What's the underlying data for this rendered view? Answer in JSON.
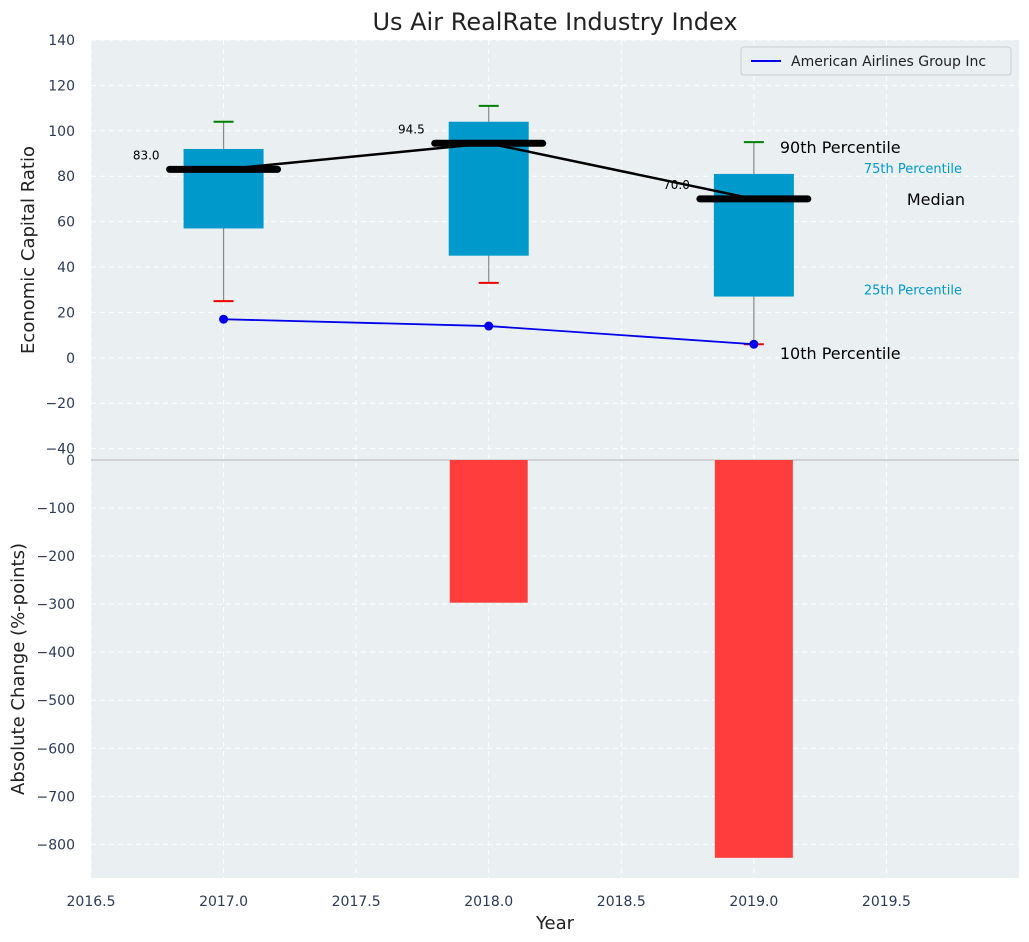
{
  "chart_data": [
    {
      "type": "box",
      "title": "Us Air RealRate Industry Index",
      "xlabel": "",
      "ylabel": "Economic Capital Ratio",
      "ylim": [
        -45,
        140
      ],
      "yticks": [
        -40,
        -20,
        0,
        20,
        40,
        60,
        80,
        100,
        120,
        140
      ],
      "x": [
        2017,
        2018,
        2019
      ],
      "percentile_90": [
        104,
        111,
        95
      ],
      "percentile_75": [
        92,
        104,
        81
      ],
      "median": [
        83.0,
        94.5,
        70.0
      ],
      "percentile_25": [
        57,
        45,
        27
      ],
      "percentile_10": [
        25,
        33,
        6
      ],
      "median_labels": [
        "83.0",
        "94.5",
        "70.0"
      ],
      "series": [
        {
          "name": "American Airlines Group Inc",
          "color": "#0000ee",
          "values": [
            17,
            14,
            6
          ]
        }
      ],
      "legend": {
        "position": "top-right",
        "entries": [
          "American Airlines Group Inc"
        ]
      },
      "annotations": {
        "p90": "90th Percentile",
        "p75": "75th Percentile",
        "median": "Median",
        "p25": "25th Percentile",
        "p10": "10th Percentile"
      },
      "colors": {
        "box": "#0099cc",
        "p90_cap": "#008000",
        "p10_cap": "#ee0000",
        "median_line": "#000000",
        "background": "#eaeff1"
      }
    },
    {
      "type": "bar",
      "xlabel": "Year",
      "ylabel": "Absolute Change (%-points)",
      "xlim": [
        2016.5,
        2020.0
      ],
      "xticks": [
        2016.5,
        2017.0,
        2017.5,
        2018.0,
        2018.5,
        2019.0,
        2019.5
      ],
      "xtick_labels": [
        "2016.5",
        "2017.0",
        "2017.5",
        "2018.0",
        "2018.5",
        "2019.0",
        "2019.5"
      ],
      "ylim": [
        -870,
        0
      ],
      "yticks": [
        -800,
        -700,
        -600,
        -500,
        -400,
        -300,
        -200,
        -100,
        0
      ],
      "x": [
        2017,
        2018,
        2019
      ],
      "values": [
        0,
        -297,
        -828
      ],
      "colors": {
        "bar": "#ff3d3d"
      }
    }
  ]
}
